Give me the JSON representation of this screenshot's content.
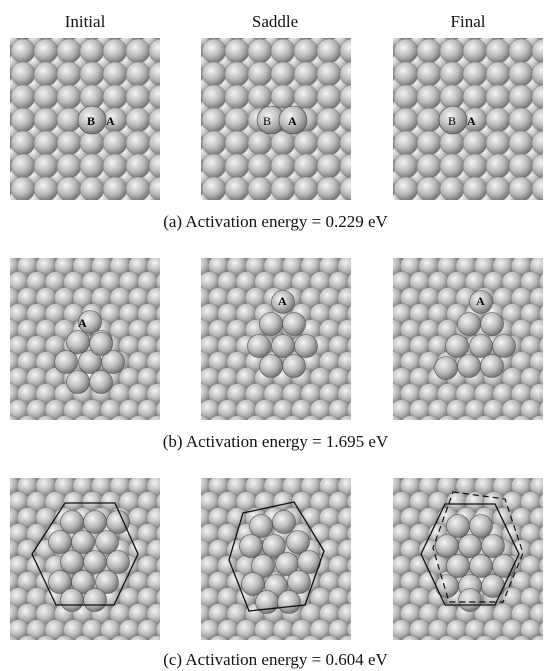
{
  "columns": [
    "Initial",
    "Saddle",
    "Final"
  ],
  "rows": [
    {
      "caption": "(a) Activation energy = 0.229 eV",
      "panels": [
        {
          "labels": {
            "B": "B",
            "A": "A"
          }
        },
        {
          "labels": {
            "B": "B",
            "A": "A"
          }
        },
        {
          "labels": {
            "B": "B",
            "A": "A"
          }
        }
      ]
    },
    {
      "caption": "(b) Activation energy = 1.695 eV",
      "panels": [
        {
          "labels": {
            "A": "A"
          }
        },
        {
          "labels": {
            "A": "A"
          }
        },
        {
          "labels": {
            "A": "A"
          }
        }
      ]
    },
    {
      "caption": "(c) Activation energy = 0.604 eV",
      "panels": [
        {},
        {},
        {}
      ]
    }
  ]
}
